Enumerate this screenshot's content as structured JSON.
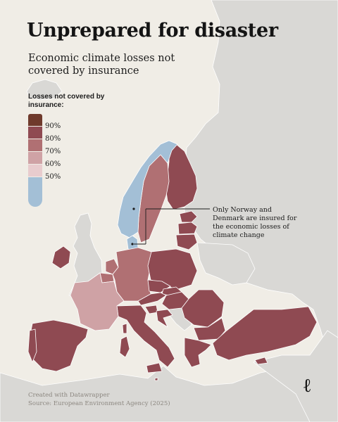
{
  "title": "Unprepared for disaster",
  "subtitle": "Economic climate losses not covered by insurance",
  "legend": {
    "title": "Losses not covered by insurance:",
    "items": [
      {
        "label": "90%",
        "value": 90,
        "color": "#6f3a2c"
      },
      {
        "label": "80%",
        "value": 80,
        "color": "#8f4a52"
      },
      {
        "label": "70%",
        "value": 70,
        "color": "#b07073"
      },
      {
        "label": "60%",
        "value": 60,
        "color": "#cfa2a5"
      },
      {
        "label": "50%",
        "value": 50,
        "color": "#e8ccce"
      },
      {
        "label": "",
        "value": 40,
        "color": "#a3bfd6"
      }
    ]
  },
  "annotation": "Only Norway and Denmark are insured for the economic losses of climate change",
  "credits": {
    "line1": "Created with Datawrapper",
    "line2": "Source: European Environment Agency (2025)"
  },
  "logo": "ℓ",
  "colors": {
    "background": "#f0ede6",
    "non_eu_land": "#d9d8d5",
    "border": "#ffffff"
  }
}
